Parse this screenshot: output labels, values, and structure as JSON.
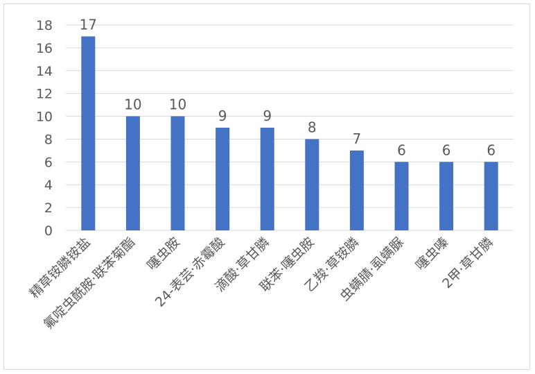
{
  "chart_data": {
    "type": "bar",
    "categories": [
      "精草铵膦铵盐",
      "氟啶虫酰胺·联苯菊酯",
      "噻虫胺",
      "24-表芸·赤霉酸",
      "滴酸·草甘膦",
      "联苯·噻虫胺",
      "乙羧·草铵膦",
      "虫螨腈·虱螨脲",
      "噻虫嗪",
      "2甲·草甘膦"
    ],
    "values": [
      17,
      10,
      10,
      9,
      9,
      8,
      7,
      6,
      6,
      6
    ],
    "title": "",
    "xlabel": "",
    "ylabel": "",
    "ylim": [
      0,
      18
    ],
    "yticks": [
      "0",
      "2",
      "4",
      "6",
      "8",
      "10",
      "12",
      "14",
      "16",
      "18"
    ],
    "data_labels": [
      "17",
      "10",
      "10",
      "9",
      "9",
      "8",
      "7",
      "6",
      "6",
      "6"
    ],
    "grid": true,
    "legend": "none",
    "colors": {
      "bar": "#4472c4",
      "grid": "#d9d9d9",
      "text": "#595959"
    }
  }
}
